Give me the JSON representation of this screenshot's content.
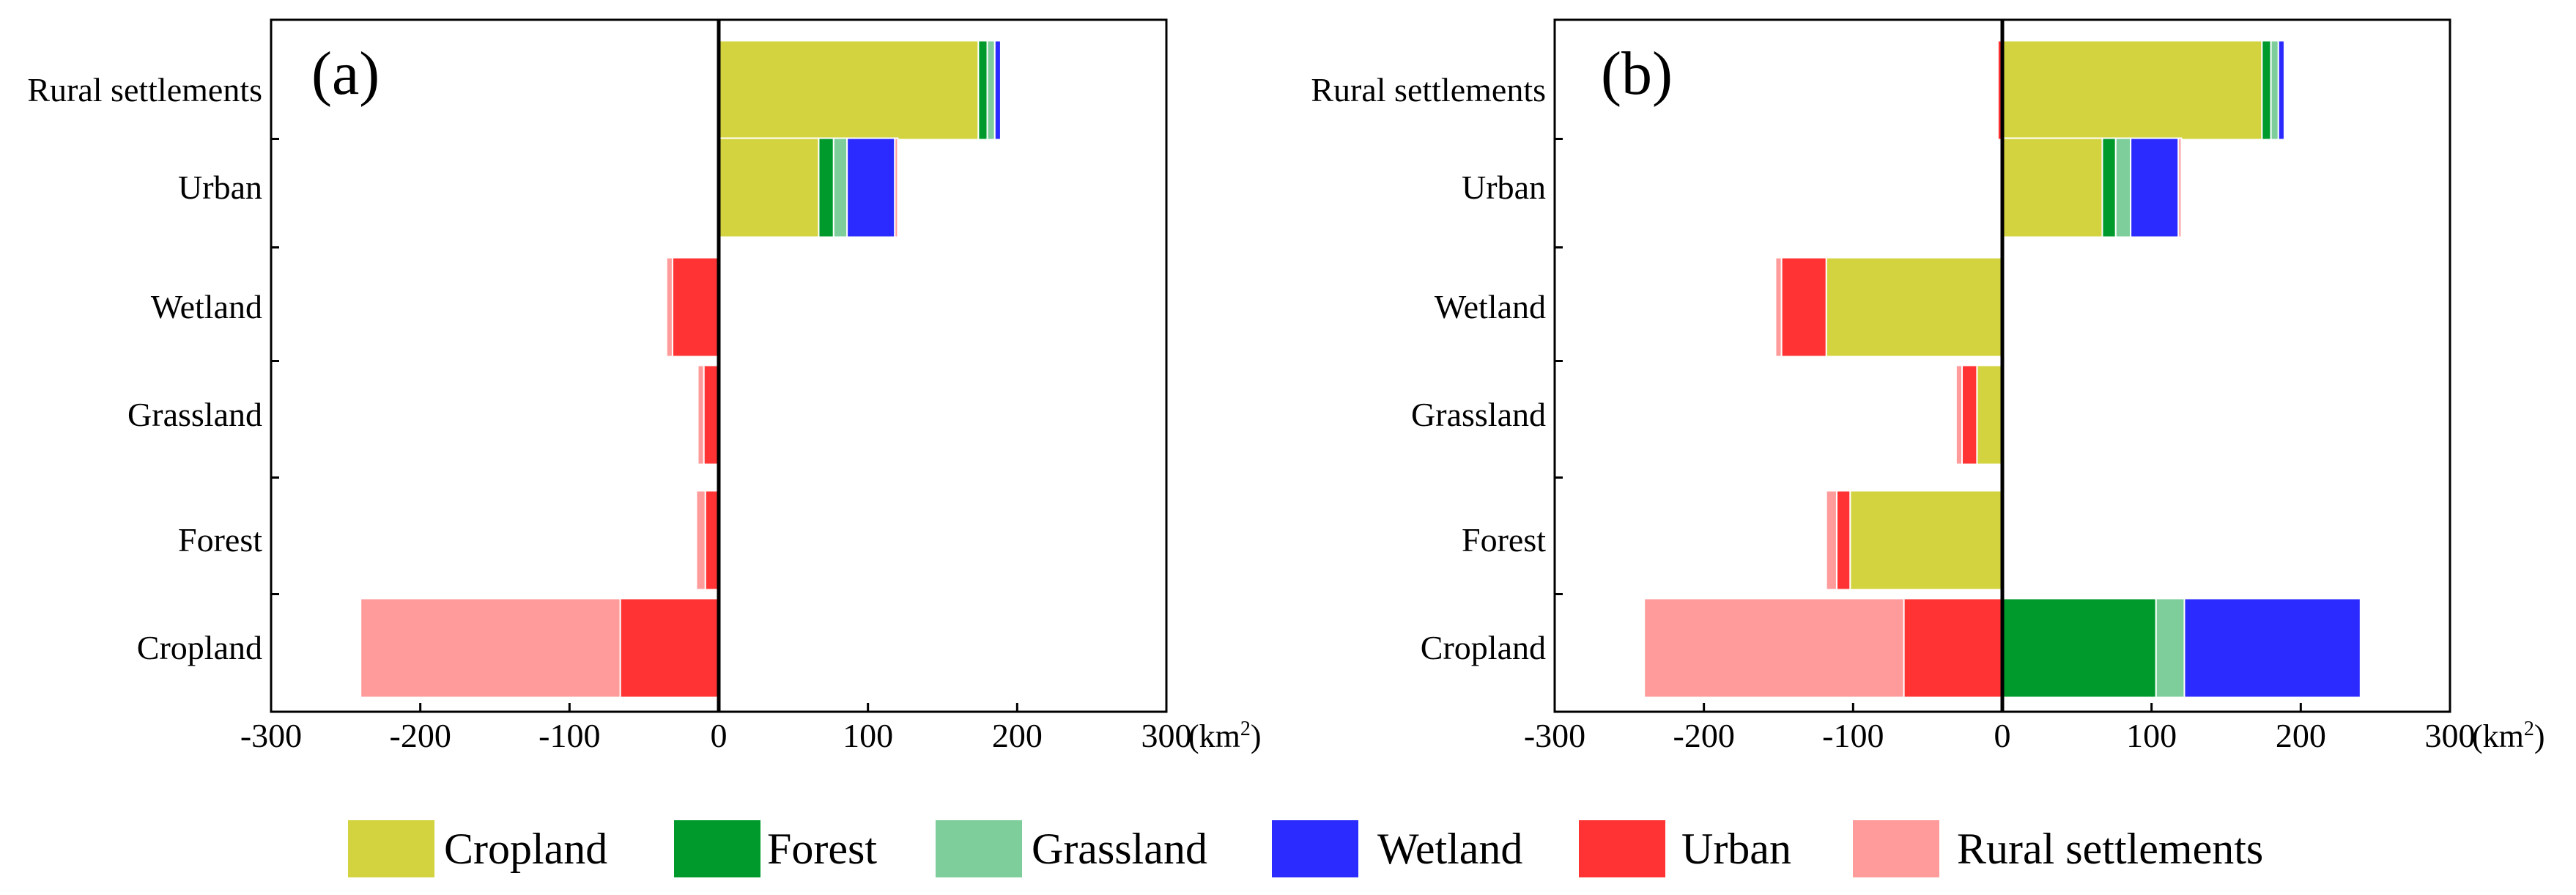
{
  "legend": [
    {
      "name": "Cropland",
      "color": "#D3D33F"
    },
    {
      "name": "Forest",
      "color": "#009A2C"
    },
    {
      "name": "Grassland",
      "color": "#7DCE9A"
    },
    {
      "name": "Wetland",
      "color": "#2B2BFF"
    },
    {
      "name": "Urban",
      "color": "#FF3333"
    },
    {
      "name": "Rural settlements",
      "color": "#FF9B9B"
    }
  ],
  "chart_data": [
    {
      "type": "bar",
      "orientation": "horizontal",
      "stacked": true,
      "panel_label": "(a)",
      "unit": "(km",
      "unit_superscript": "2",
      "unit_close": ")",
      "xlim": [
        -300,
        300
      ],
      "xticks": [
        -300,
        -200,
        -100,
        0,
        100,
        200,
        300
      ],
      "xtick_labels": [
        "-300",
        "-200",
        "-100",
        "0",
        "100",
        "200",
        "300"
      ],
      "categories": [
        "Rural settlements",
        "Urban",
        "Wetland",
        "Grassland",
        "Forest",
        "Cropland"
      ],
      "bars": [
        {
          "category": "Rural settlements",
          "positive": [
            {
              "class": "Cropland",
              "value": 174
            },
            {
              "class": "Forest",
              "value": 6
            },
            {
              "class": "Grassland",
              "value": 5
            },
            {
              "class": "Wetland",
              "value": 4
            }
          ],
          "negative": [
            {
              "class": "Urban",
              "value": 1
            }
          ]
        },
        {
          "category": "Urban",
          "positive": [
            {
              "class": "Cropland",
              "value": 67
            },
            {
              "class": "Forest",
              "value": 10
            },
            {
              "class": "Grassland",
              "value": 9
            },
            {
              "class": "Wetland",
              "value": 32
            },
            {
              "class": "Rural settlements",
              "value": 2
            }
          ],
          "negative": []
        },
        {
          "category": "Wetland",
          "positive": [],
          "negative": [
            {
              "class": "Urban",
              "value": 31
            },
            {
              "class": "Rural settlements",
              "value": 4
            }
          ]
        },
        {
          "category": "Grassland",
          "positive": [],
          "negative": [
            {
              "class": "Urban",
              "value": 10
            },
            {
              "class": "Rural settlements",
              "value": 4
            }
          ]
        },
        {
          "category": "Forest",
          "positive": [],
          "negative": [
            {
              "class": "Urban",
              "value": 9
            },
            {
              "class": "Rural settlements",
              "value": 6
            }
          ]
        },
        {
          "category": "Cropland",
          "positive": [],
          "negative": [
            {
              "class": "Urban",
              "value": 66
            },
            {
              "class": "Rural settlements",
              "value": 174
            }
          ]
        }
      ]
    },
    {
      "type": "bar",
      "orientation": "horizontal",
      "stacked": true,
      "panel_label": "(b)",
      "unit": "(km",
      "unit_superscript": "2",
      "unit_close": ")",
      "xlim": [
        -300,
        300
      ],
      "xticks": [
        -300,
        -200,
        -100,
        0,
        100,
        200,
        300
      ],
      "xtick_labels": [
        "-300",
        "-200",
        "-100",
        "0",
        "100",
        "200",
        "300"
      ],
      "categories": [
        "Rural settlements",
        "Urban",
        "Wetland",
        "Grassland",
        "Forest",
        "Cropland"
      ],
      "bars": [
        {
          "category": "Rural settlements",
          "positive": [
            {
              "class": "Cropland",
              "value": 174
            },
            {
              "class": "Forest",
              "value": 6
            },
            {
              "class": "Grassland",
              "value": 5
            },
            {
              "class": "Wetland",
              "value": 4
            }
          ],
          "negative": [
            {
              "class": "Urban",
              "value": 3
            }
          ]
        },
        {
          "category": "Urban",
          "positive": [
            {
              "class": "Cropland",
              "value": 67
            },
            {
              "class": "Forest",
              "value": 9
            },
            {
              "class": "Grassland",
              "value": 10
            },
            {
              "class": "Wetland",
              "value": 32
            },
            {
              "class": "Rural settlements",
              "value": 2
            }
          ],
          "negative": []
        },
        {
          "category": "Wetland",
          "positive": [],
          "negative": [
            {
              "class": "Cropland",
              "value": 118
            },
            {
              "class": "Urban",
              "value": 30
            },
            {
              "class": "Rural settlements",
              "value": 4
            }
          ]
        },
        {
          "category": "Grassland",
          "positive": [],
          "negative": [
            {
              "class": "Cropland",
              "value": 17
            },
            {
              "class": "Urban",
              "value": 10
            },
            {
              "class": "Rural settlements",
              "value": 4
            }
          ]
        },
        {
          "category": "Forest",
          "positive": [],
          "negative": [
            {
              "class": "Cropland",
              "value": 102
            },
            {
              "class": "Urban",
              "value": 9
            },
            {
              "class": "Rural settlements",
              "value": 7
            }
          ]
        },
        {
          "category": "Cropland",
          "positive": [
            {
              "class": "Forest",
              "value": 103
            },
            {
              "class": "Grassland",
              "value": 19
            },
            {
              "class": "Wetland",
              "value": 118
            }
          ],
          "negative": [
            {
              "class": "Urban",
              "value": 66
            },
            {
              "class": "Rural settlements",
              "value": 174
            }
          ]
        }
      ]
    }
  ]
}
